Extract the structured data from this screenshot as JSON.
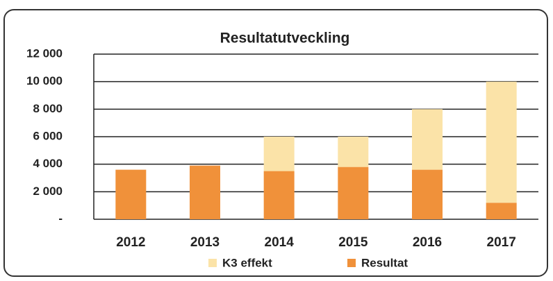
{
  "chart_data": {
    "type": "stacked_bar",
    "title": "Resultatutveckling",
    "categories": [
      "2012",
      "2013",
      "2014",
      "2015",
      "2016",
      "2017"
    ],
    "series": [
      {
        "name": "Resultat",
        "color": "#f0913a",
        "values": [
          3600,
          3900,
          3500,
          3800,
          3600,
          1200
        ]
      },
      {
        "name": "K3 effekt",
        "color": "#fbe3a8",
        "values": [
          0,
          0,
          2500,
          2200,
          4400,
          8800
        ]
      }
    ],
    "legend_order": [
      1,
      0
    ],
    "ylim": [
      0,
      12000
    ],
    "yticks": [
      {
        "value": 0,
        "label": "-"
      },
      {
        "value": 2000,
        "label": "2 000"
      },
      {
        "value": 4000,
        "label": "4 000"
      },
      {
        "value": 6000,
        "label": "6 000"
      },
      {
        "value": 8000,
        "label": "8 000"
      },
      {
        "value": 10000,
        "label": "10 000"
      },
      {
        "value": 12000,
        "label": "12 000"
      }
    ],
    "grid": true
  }
}
